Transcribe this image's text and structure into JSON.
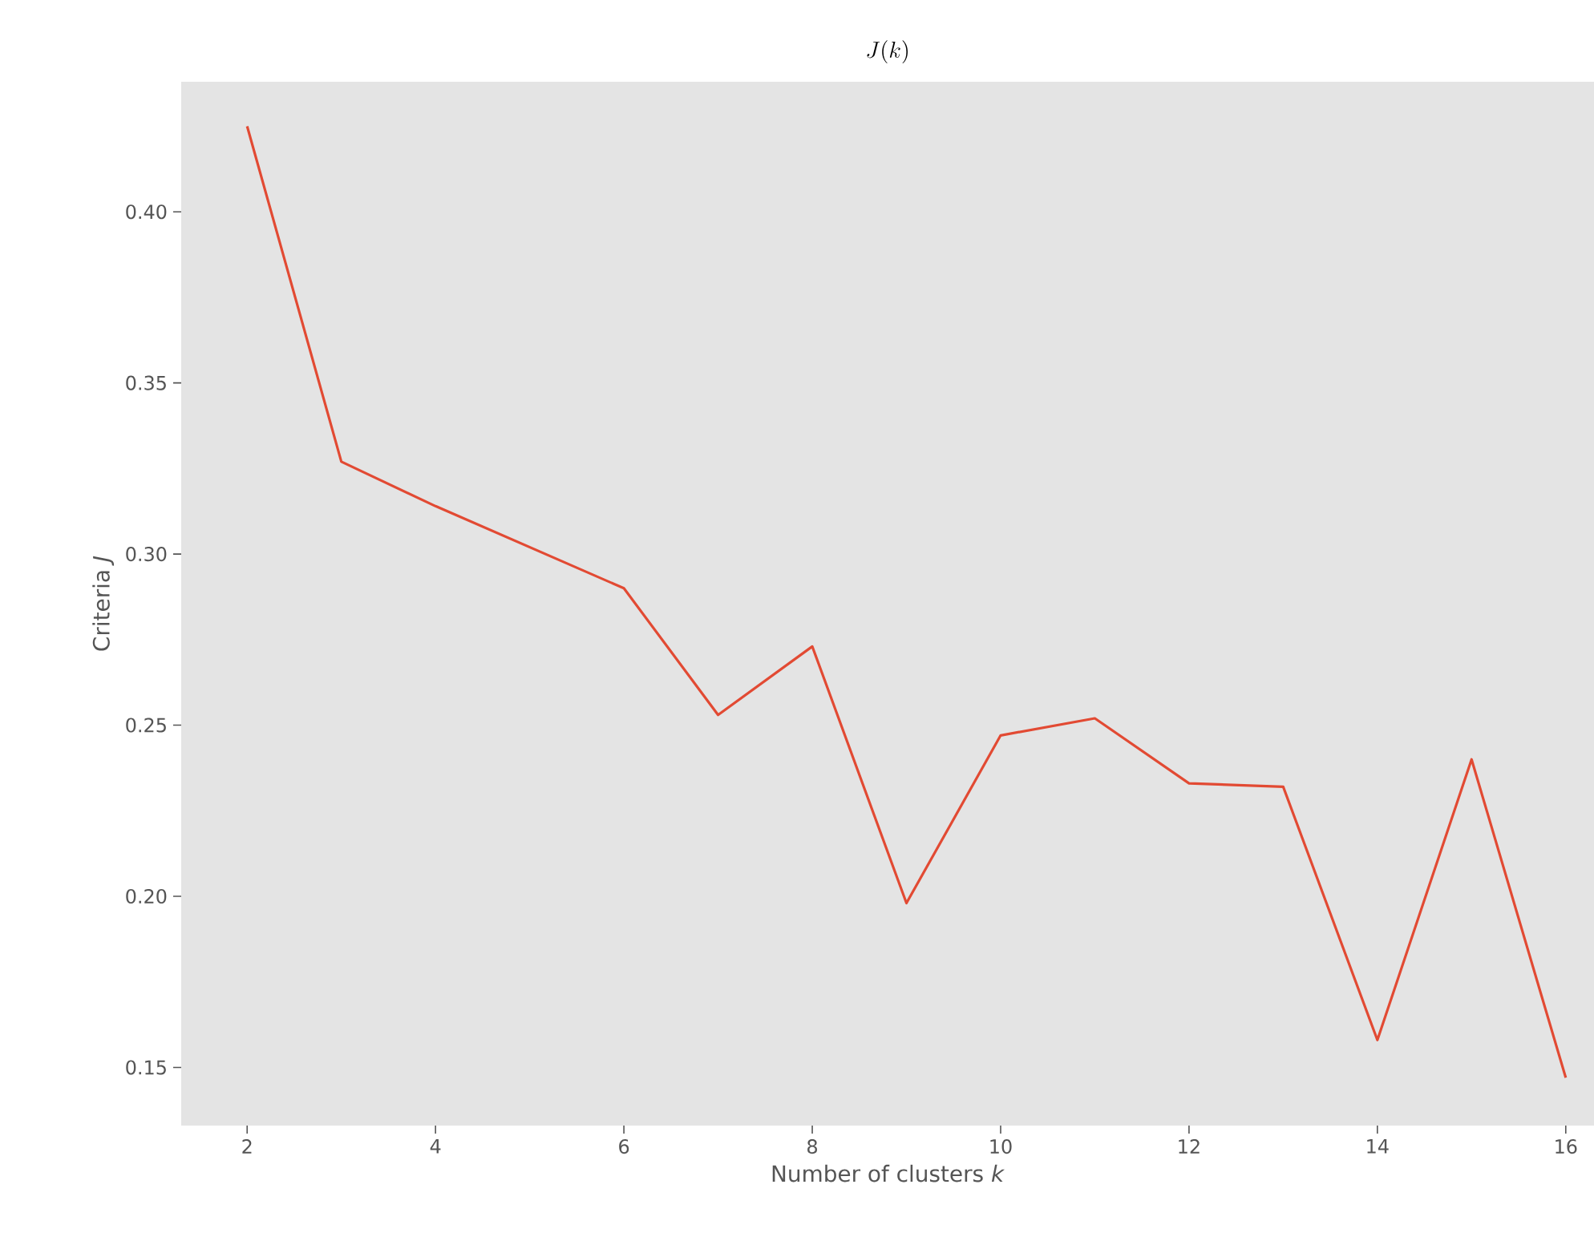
{
  "chart_data": {
    "type": "line",
    "title": "J(k)",
    "xlabel": "Number of clusters *k*",
    "ylabel": "Criteria *J*",
    "x": [
      2,
      3,
      4,
      5,
      6,
      7,
      8,
      9,
      10,
      11,
      12,
      13,
      14,
      15,
      16
    ],
    "series": [
      {
        "color": "#e24a33",
        "values": [
          0.425,
          0.327,
          0.314,
          0.302,
          0.29,
          0.253,
          0.273,
          0.198,
          0.247,
          0.252,
          0.233,
          0.232,
          0.158,
          0.24,
          0.147
        ]
      }
    ],
    "xlim": [
      1.3,
      16.3
    ],
    "ylim": [
      0.133,
      0.438
    ],
    "xticks": [
      2,
      4,
      6,
      8,
      10,
      12,
      14,
      16
    ],
    "yticks": [
      {
        "value": 0.15,
        "label": "0.15"
      },
      {
        "value": 0.2,
        "label": "0.20"
      },
      {
        "value": 0.25,
        "label": "0.25"
      },
      {
        "value": 0.3,
        "label": "0.30"
      },
      {
        "value": 0.35,
        "label": "0.35"
      },
      {
        "value": 0.4,
        "label": "0.40"
      }
    ],
    "grid": false,
    "marker": "none",
    "line_style": "solid"
  }
}
